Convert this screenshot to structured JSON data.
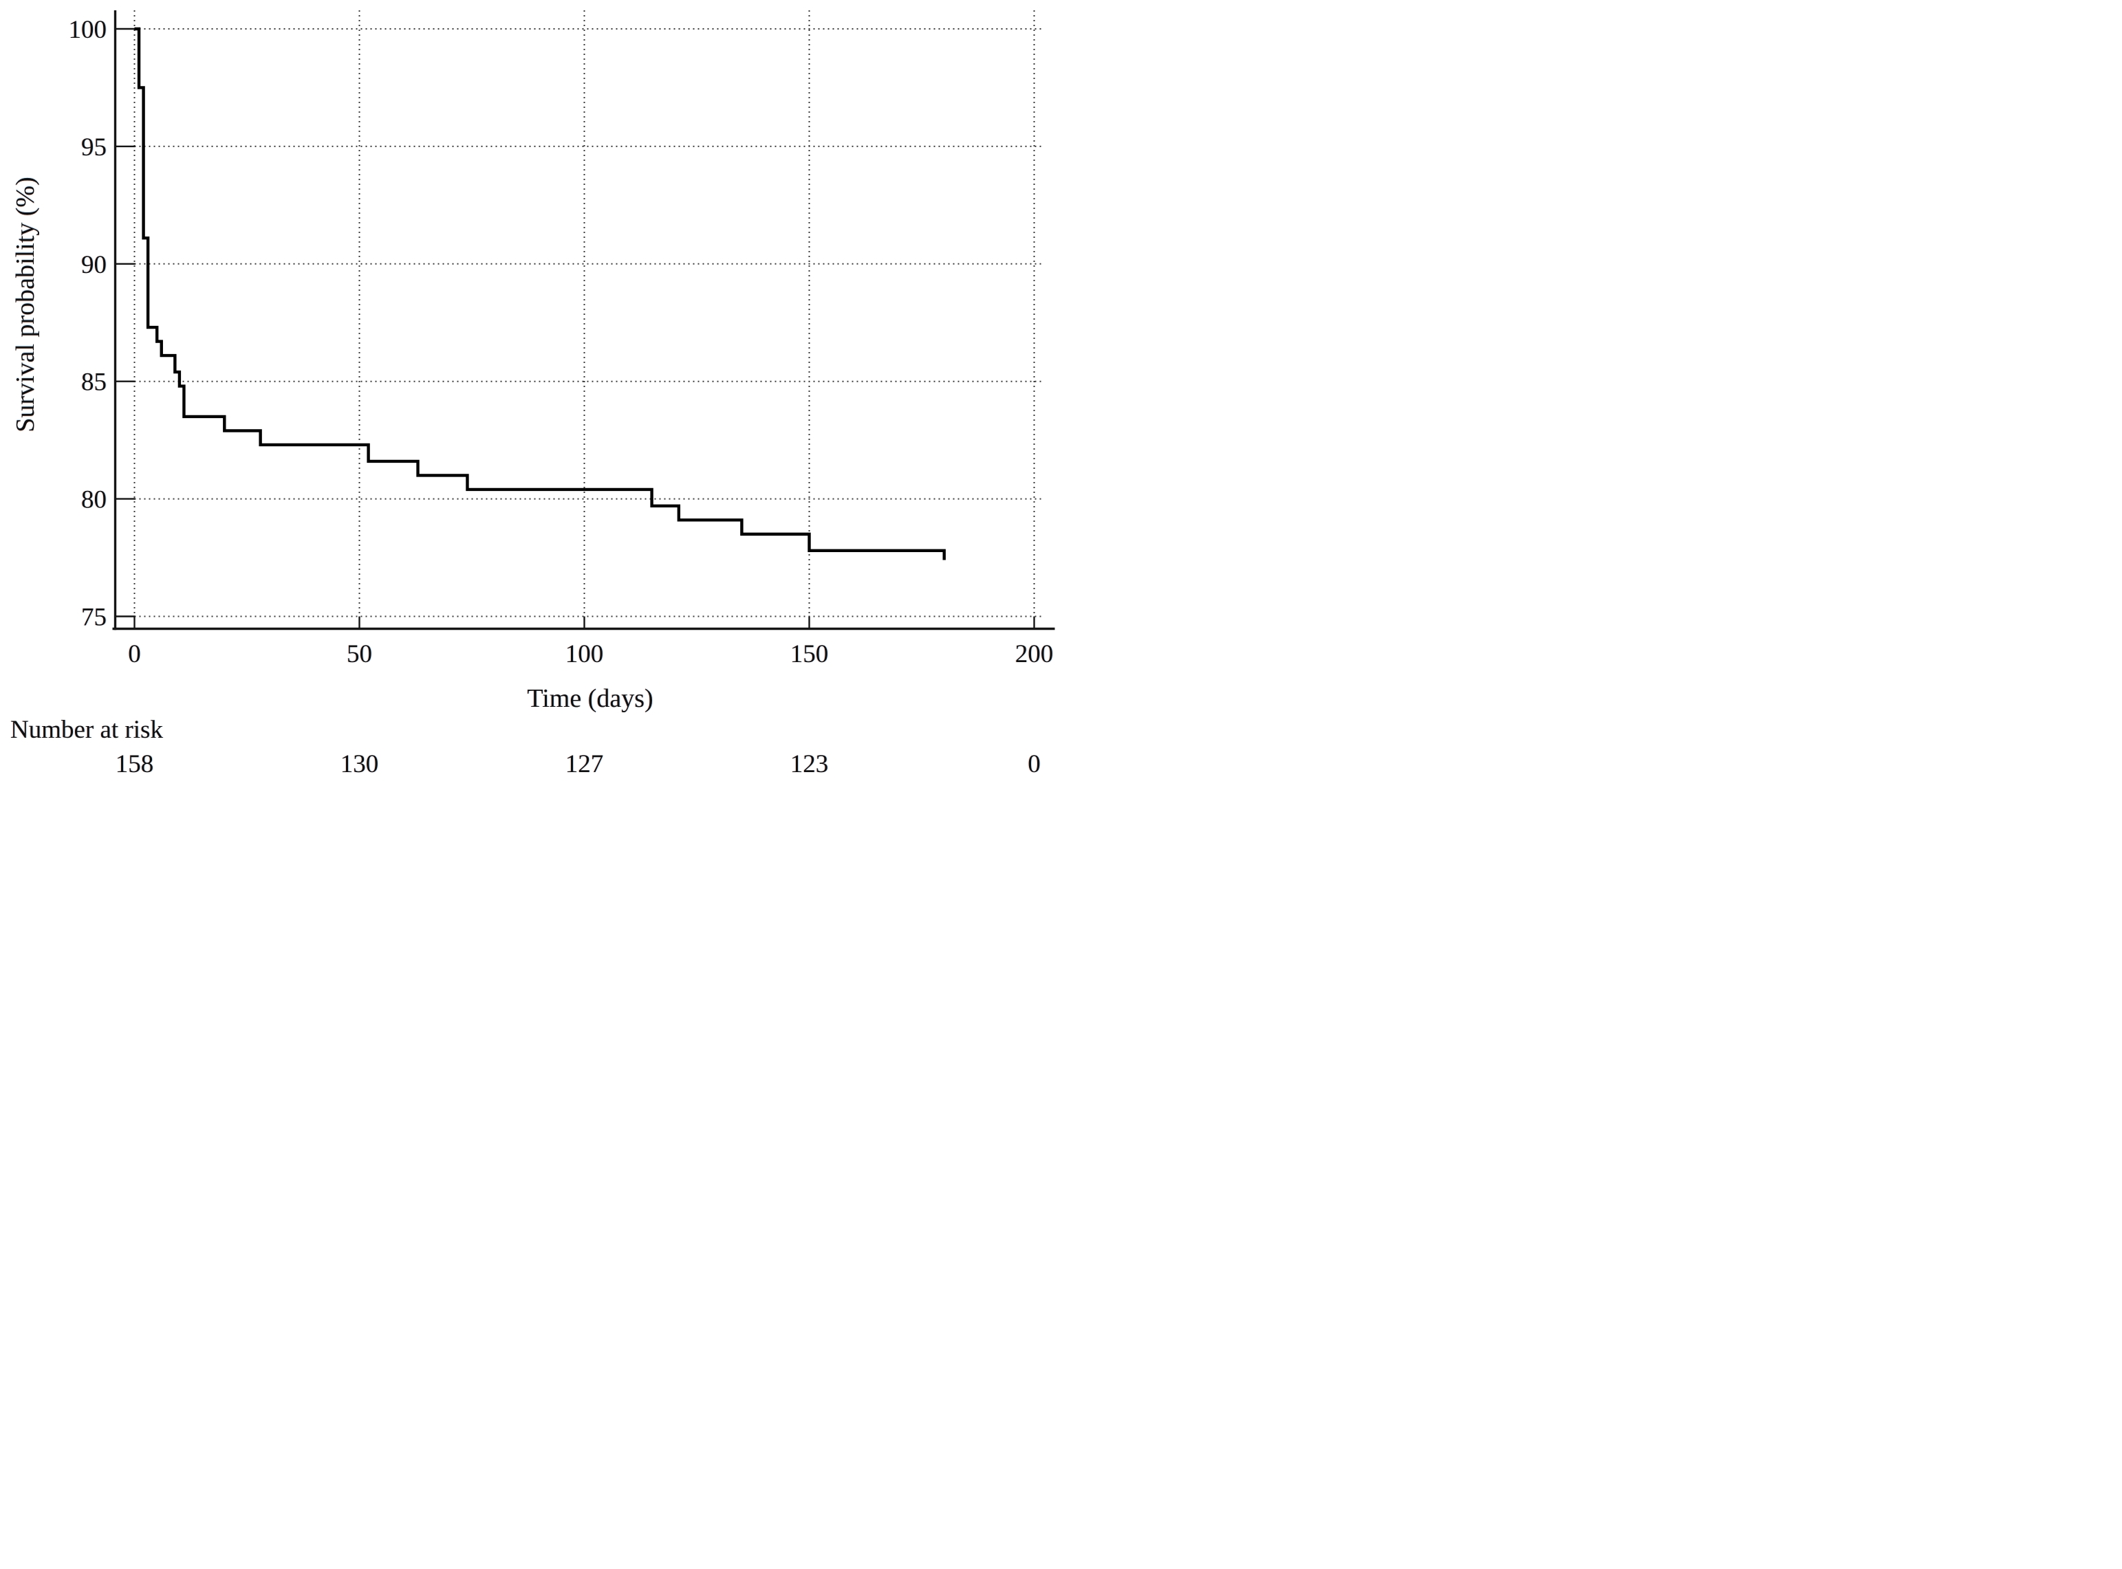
{
  "chart_data": {
    "type": "line",
    "subtype": "kaplan_meier_step_function",
    "title": "",
    "xlabel": "Time (days)",
    "ylabel": "Survival probability (%)",
    "xlim": [
      0,
      200
    ],
    "ylim": [
      75,
      100
    ],
    "x_ticks": [
      0,
      50,
      100,
      150,
      200
    ],
    "y_ticks": [
      100,
      95,
      90,
      85,
      80,
      75
    ],
    "grid": "dotted",
    "legend_position": "none",
    "line_color": "#000000",
    "series": [
      {
        "name": "survival-curve",
        "steps": [
          [
            0,
            100
          ],
          [
            1,
            97.5
          ],
          [
            2,
            91.1
          ],
          [
            3,
            87.3
          ],
          [
            5,
            86.7
          ],
          [
            6,
            86.1
          ],
          [
            9,
            85.4
          ],
          [
            10,
            84.8
          ],
          [
            11,
            83.5
          ],
          [
            20,
            82.9
          ],
          [
            28,
            82.3
          ],
          [
            52,
            81.6
          ],
          [
            63,
            81.0
          ],
          [
            74,
            80.4
          ],
          [
            115,
            79.7
          ],
          [
            121,
            79.1
          ],
          [
            135,
            78.5
          ],
          [
            150,
            77.8
          ]
        ],
        "end_time": 180,
        "end_tick_to": 77.4
      }
    ]
  },
  "risk_table": {
    "label": "Number at risk",
    "entries": [
      {
        "time": 0,
        "n": "158"
      },
      {
        "time": 50,
        "n": "130"
      },
      {
        "time": 100,
        "n": "127"
      },
      {
        "time": 150,
        "n": "123"
      },
      {
        "time": 200,
        "n": "0"
      }
    ]
  }
}
